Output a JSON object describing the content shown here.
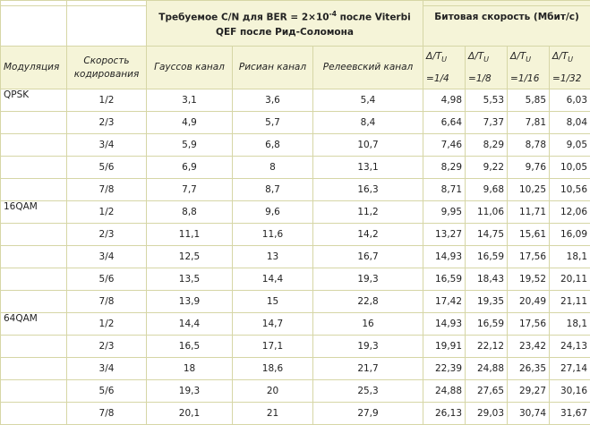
{
  "header": {
    "cn_title_before_exp": "Требуемое C/N для BER = 2×10",
    "cn_title_exp": "-4",
    "cn_title_after_exp": " после Viterbi QEF после Рид-Соломона",
    "bitrate_title": "Битовая скорость (Мбит/с)",
    "col_modulation": "Модуляция",
    "col_coding_rate": "Скорость кодирования",
    "col_gaussian": "Гауссов канал",
    "col_rician": "Рисиан канал",
    "col_rayleigh": "Релеевский канал",
    "guard_ratios": [
      {
        "num": "Δ/T",
        "sub": "U",
        "frac": "=1/4"
      },
      {
        "num": "Δ/T",
        "sub": "U",
        "frac": "=1/8"
      },
      {
        "num": "Δ/T",
        "sub": "U",
        "frac": "=1/16"
      },
      {
        "num": "Δ/T",
        "sub": "U",
        "frac": "=1/32"
      }
    ]
  },
  "groups": [
    {
      "modulation": "QPSK",
      "rows": [
        [
          "1/2",
          "3,1",
          "3,6",
          "5,4",
          "4,98",
          "5,53",
          "5,85",
          "6,03"
        ],
        [
          "2/3",
          "4,9",
          "5,7",
          "8,4",
          "6,64",
          "7,37",
          "7,81",
          "8,04"
        ],
        [
          "3/4",
          "5,9",
          "6,8",
          "10,7",
          "7,46",
          "8,29",
          "8,78",
          "9,05"
        ],
        [
          "5/6",
          "6,9",
          "8",
          "13,1",
          "8,29",
          "9,22",
          "9,76",
          "10,05"
        ],
        [
          "7/8",
          "7,7",
          "8,7",
          "16,3",
          "8,71",
          "9,68",
          "10,25",
          "10,56"
        ]
      ]
    },
    {
      "modulation": "16QAM",
      "rows": [
        [
          "1/2",
          "8,8",
          "9,6",
          "11,2",
          "9,95",
          "11,06",
          "11,71",
          "12,06"
        ],
        [
          "2/3",
          "11,1",
          "11,6",
          "14,2",
          "13,27",
          "14,75",
          "15,61",
          "16,09"
        ],
        [
          "3/4",
          "12,5",
          "13",
          "16,7",
          "14,93",
          "16,59",
          "17,56",
          "18,1"
        ],
        [
          "5/6",
          "13,5",
          "14,4",
          "19,3",
          "16,59",
          "18,43",
          "19,52",
          "20,11"
        ],
        [
          "7/8",
          "13,9",
          "15",
          "22,8",
          "17,42",
          "19,35",
          "20,49",
          "21,11"
        ]
      ]
    },
    {
      "modulation": "64QAM",
      "rows": [
        [
          "1/2",
          "14,4",
          "14,7",
          "16",
          "14,93",
          "16,59",
          "17,56",
          "18,1"
        ],
        [
          "2/3",
          "16,5",
          "17,1",
          "19,3",
          "19,91",
          "22,12",
          "23,42",
          "24,13"
        ],
        [
          "3/4",
          "18",
          "18,6",
          "21,7",
          "22,39",
          "24,88",
          "26,35",
          "27,14"
        ],
        [
          "5/6",
          "19,3",
          "20",
          "25,3",
          "24,88",
          "27,65",
          "29,27",
          "30,16"
        ],
        [
          "7/8",
          "20,1",
          "21",
          "27,9",
          "26,13",
          "29,03",
          "30,74",
          "31,67"
        ]
      ]
    }
  ]
}
